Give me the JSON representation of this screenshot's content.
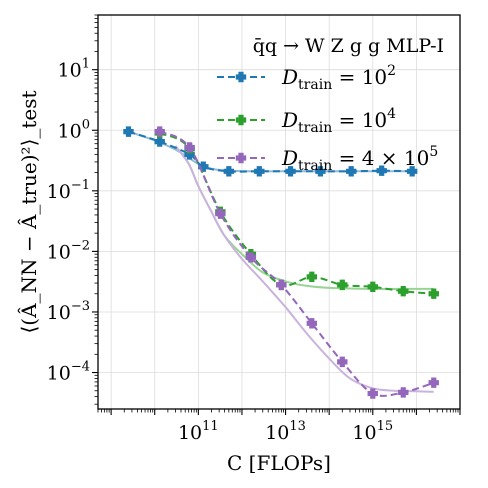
{
  "chart_data": {
    "type": "line",
    "xscale": "log",
    "yscale": "log",
    "xlim": [
      500000000.0,
      1e+17
    ],
    "ylim": [
      2.5e-05,
      80
    ],
    "grid": true,
    "legend_position": "top-right",
    "title": "q̄q → W Z g g  MLP-I",
    "xlabel": "C [FLOPs]",
    "ylabel": "⟨(Â_NN − Â_true)²⟩_test",
    "x_ticks": [
      {
        "value": 100000000000.0,
        "label_base": "10",
        "label_exp": "11"
      },
      {
        "value": 10000000000000.0,
        "label_base": "10",
        "label_exp": "13"
      },
      {
        "value": 1000000000000000.0,
        "label_base": "10",
        "label_exp": "15"
      }
    ],
    "y_ticks": [
      {
        "value": 0.0001,
        "label_base": "10",
        "label_exp": "−4"
      },
      {
        "value": 0.001,
        "label_base": "10",
        "label_exp": "−3"
      },
      {
        "value": 0.01,
        "label_base": "10",
        "label_exp": "−2"
      },
      {
        "value": 0.1,
        "label_base": "10",
        "label_exp": "−1"
      },
      {
        "value": 1,
        "label_base": "10",
        "label_exp": "0"
      },
      {
        "value": 10,
        "label_base": "10",
        "label_exp": "1"
      }
    ],
    "series": [
      {
        "name": "D_train = 10²",
        "legend_label": {
          "prefix": "D",
          "sub": "train",
          "eq": " = 10",
          "sup": "2"
        },
        "color": "#1f77b4",
        "fit_color": "#8fbcdc",
        "x": [
          2500000000.0,
          13000000000.0,
          63000000000.0,
          130000000000.0,
          500000000000.0,
          2500000000000.0,
          13000000000000.0,
          63000000000000.0,
          320000000000000.0,
          1600000000000000.0,
          8000000000000000.0
        ],
        "y": [
          0.95,
          0.65,
          0.4,
          0.25,
          0.21,
          0.21,
          0.21,
          0.21,
          0.21,
          0.215,
          0.21
        ],
        "fit_x": [
          2500000000.0,
          10000000000.0,
          30000000000.0,
          60000000000.0,
          120000000000.0,
          250000000000.0,
          500000000000.0,
          1000000000000.0,
          3000000000000.0,
          10000000000000.0,
          100000000000000.0,
          1000000000000000.0,
          8000000000000000.0
        ],
        "fit_y": [
          0.95,
          0.68,
          0.48,
          0.35,
          0.26,
          0.225,
          0.215,
          0.212,
          0.21,
          0.21,
          0.21,
          0.21,
          0.21
        ]
      },
      {
        "name": "D_train = 10⁴",
        "legend_label": {
          "prefix": "D",
          "sub": "train",
          "eq": " = 10",
          "sup": "4"
        },
        "color": "#2ca02c",
        "fit_color": "#98d494",
        "x": [
          13000000000.0,
          63000000000.0,
          320000000000.0,
          1600000000000.0,
          8000000000000.0,
          40000000000000.0,
          200000000000000.0,
          1000000000000000.0,
          5000000000000000.0,
          2.5e+16
        ],
        "y": [
          0.9,
          0.5,
          0.045,
          0.009,
          0.0028,
          0.0038,
          0.0028,
          0.0026,
          0.0022,
          0.002
        ],
        "fit_x": [
          30000000000.0,
          60000000000.0,
          100000000000.0,
          200000000000.0,
          400000000000.0,
          1000000000000.0,
          3000000000000.0,
          10000000000000.0,
          30000000000000.0,
          100000000000000.0,
          1000000000000000.0,
          1e+16,
          2.5e+16
        ],
        "fit_y": [
          0.55,
          0.28,
          0.12,
          0.045,
          0.018,
          0.009,
          0.0045,
          0.0032,
          0.0027,
          0.0025,
          0.0024,
          0.0024,
          0.0024
        ]
      },
      {
        "name": "D_train = 4 × 10⁵",
        "legend_label": {
          "prefix": "D",
          "sub": "train",
          "eq": " = 4 × 10",
          "sup": "5"
        },
        "color": "#9467bd",
        "fit_color": "#c9b3de",
        "x": [
          13000000000.0,
          63000000000.0,
          320000000000.0,
          1600000000000.0,
          8000000000000.0,
          40000000000000.0,
          200000000000000.0,
          1000000000000000.0,
          5000000000000000.0,
          2.5e+16
        ],
        "y": [
          0.95,
          0.52,
          0.042,
          0.008,
          0.0028,
          0.00065,
          0.00015,
          4.5e-05,
          4.7e-05,
          6.8e-05
        ],
        "fit_x": [
          30000000000.0,
          60000000000.0,
          100000000000.0,
          200000000000.0,
          400000000000.0,
          1000000000000.0,
          3000000000000.0,
          10000000000000.0,
          30000000000000.0,
          100000000000000.0,
          300000000000000.0,
          1000000000000000.0,
          3000000000000000.0,
          1e+16,
          2.5e+16
        ],
        "fit_y": [
          0.55,
          0.28,
          0.12,
          0.045,
          0.018,
          0.0075,
          0.0032,
          0.0012,
          0.00045,
          0.00017,
          8e-05,
          5.5e-05,
          5e-05,
          4.9e-05,
          4.8e-05
        ]
      }
    ]
  }
}
